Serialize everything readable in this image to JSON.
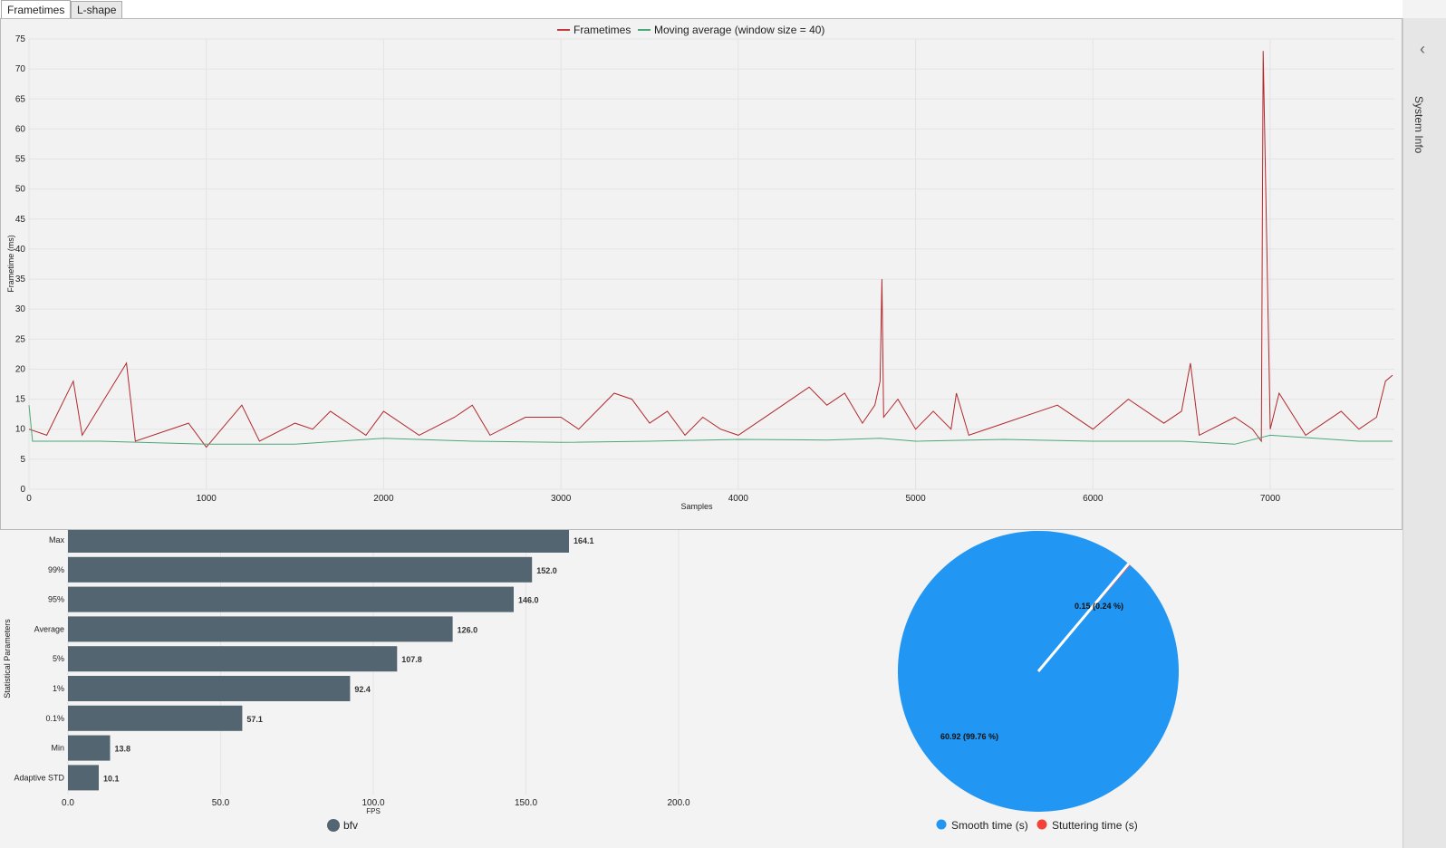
{
  "tabs": [
    {
      "label": "Frametimes"
    },
    {
      "label": "L-shape"
    }
  ],
  "sidebar": {
    "label": "System Info",
    "chevron_icon": "chevron-left-icon"
  },
  "frametime_chart": {
    "legend": [
      {
        "label": "Frametimes",
        "color": "#c0393b"
      },
      {
        "label": "Moving average (window size = 40)",
        "color": "#4aa77a"
      }
    ],
    "ylabel": "Frametime (ms)",
    "xlabel": "Samples",
    "yticks": [
      "0",
      "5",
      "10",
      "15",
      "20",
      "25",
      "30",
      "35",
      "40",
      "45",
      "50",
      "55",
      "60",
      "65",
      "70",
      "75"
    ],
    "xticks": [
      "0",
      "1000",
      "2000",
      "3000",
      "4000",
      "5000",
      "6000",
      "7000"
    ]
  },
  "bar_chart": {
    "ylabel": "Statistical Parameters",
    "xlabel": "FPS",
    "xticks": [
      "0.0",
      "50.0",
      "100.0",
      "150.0",
      "200.0"
    ],
    "legend": {
      "label": "bfv",
      "color": "#536570"
    }
  },
  "pie_chart": {
    "legend": [
      {
        "label": "Smooth time (s)",
        "color": "#2196f3"
      },
      {
        "label": "Stuttering time (s)",
        "color": "#f44336"
      }
    ],
    "smooth_label": "60.92 (99.76 %)",
    "stutter_label": "0.15 (0.24 %)"
  },
  "chart_data": [
    {
      "type": "line",
      "ylabel": "Frametime (ms)",
      "xlabel": "Samples",
      "xlim": [
        0,
        7700
      ],
      "ylim": [
        0,
        75
      ],
      "grid": true,
      "legend_position": "top",
      "series": [
        {
          "name": "Frametimes",
          "color": "#c0393b",
          "x": [
            0,
            100,
            250,
            300,
            550,
            600,
            900,
            1000,
            1200,
            1300,
            1500,
            1600,
            1700,
            1900,
            2000,
            2200,
            2400,
            2500,
            2600,
            2800,
            3000,
            3100,
            3200,
            3300,
            3400,
            3500,
            3600,
            3700,
            3800,
            3900,
            4000,
            4200,
            4400,
            4500,
            4600,
            4700,
            4770,
            4800,
            4810,
            4820,
            4900,
            5000,
            5100,
            5200,
            5230,
            5300,
            5500,
            5800,
            6000,
            6200,
            6400,
            6500,
            6550,
            6600,
            6800,
            6900,
            6950,
            6960,
            7000,
            7050,
            7200,
            7400,
            7500,
            7600,
            7650,
            7690
          ],
          "values": [
            10,
            9,
            18,
            9,
            21,
            8,
            11,
            7,
            14,
            8,
            11,
            10,
            13,
            9,
            13,
            9,
            12,
            14,
            9,
            12,
            12,
            10,
            13,
            16,
            15,
            11,
            13,
            9,
            12,
            10,
            9,
            13,
            17,
            14,
            16,
            11,
            14,
            18,
            35,
            12,
            15,
            10,
            13,
            10,
            16,
            9,
            11,
            14,
            10,
            15,
            11,
            13,
            21,
            9,
            12,
            10,
            8,
            73,
            10,
            16,
            9,
            13,
            10,
            12,
            18,
            19
          ]
        },
        {
          "name": "Moving average (window size = 40)",
          "color": "#4aa77a",
          "x": [
            0,
            20,
            400,
            1000,
            1500,
            2000,
            2500,
            3000,
            3500,
            4000,
            4500,
            4800,
            5000,
            5500,
            6000,
            6500,
            6800,
            7000,
            7500,
            7690
          ],
          "values": [
            14,
            8,
            8,
            7.5,
            7.5,
            8.5,
            8,
            7.8,
            8,
            8.3,
            8.2,
            8.5,
            8,
            8.3,
            8,
            8,
            7.5,
            9,
            8,
            8
          ]
        }
      ]
    },
    {
      "type": "bar",
      "orientation": "horizontal",
      "categories": [
        "Max",
        "99%",
        "95%",
        "Average",
        "5%",
        "1%",
        "0.1%",
        "Min",
        "Adaptive STD"
      ],
      "values": [
        164.1,
        152.0,
        146.0,
        126.0,
        107.8,
        92.4,
        57.1,
        13.8,
        10.1
      ],
      "value_labels": [
        "164.1",
        "152.0",
        "146.0",
        "126.0",
        "107.8",
        "92.4",
        "57.1",
        "13.8",
        "10.1"
      ],
      "xlim": [
        0,
        200
      ],
      "xlabel": "FPS",
      "ylabel": "Statistical Parameters",
      "series": [
        {
          "name": "bfv",
          "color": "#536570"
        }
      ]
    },
    {
      "type": "pie",
      "categories": [
        "Smooth time (s)",
        "Stuttering time (s)"
      ],
      "values": [
        60.92,
        0.15
      ],
      "labels": [
        "60.92 (99.76 %)",
        "0.15 (0.24 %)"
      ],
      "colors": [
        "#2196f3",
        "#f44336"
      ]
    }
  ]
}
